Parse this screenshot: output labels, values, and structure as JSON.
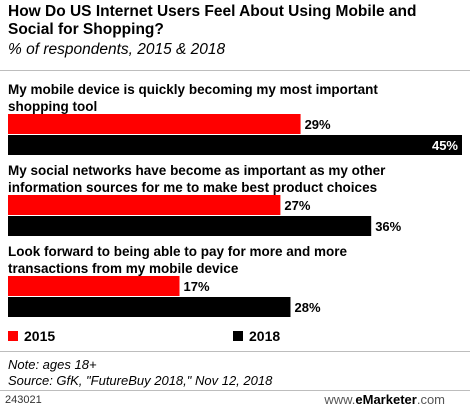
{
  "chart_data": {
    "type": "bar",
    "orientation": "horizontal",
    "title": "How Do US Internet Users Feel About Using Mobile and Social for Shopping?",
    "subtitle": "% of respondents, 2015 & 2018",
    "categories": [
      [
        "My mobile device is quickly becoming my most important",
        "shopping tool"
      ],
      [
        "My social networks have become as important as my other",
        "information sources for me to make best product choices"
      ],
      [
        "Look forward to being able to pay for more and more",
        "transactions from my mobile device"
      ]
    ],
    "series": [
      {
        "name": "2015",
        "values": [
          29,
          27,
          17
        ],
        "labels": [
          "29%",
          "27%",
          "17%"
        ],
        "color": "#ff0000"
      },
      {
        "name": "2018",
        "values": [
          45,
          36,
          28
        ],
        "labels": [
          "45%",
          "36%",
          "28%"
        ],
        "color": "#000000"
      }
    ],
    "xlim": [
      0,
      45
    ],
    "grid": false,
    "legend_position": "bottom"
  },
  "note": "Note: ages 18+",
  "source": "Source: GfK, \"FutureBuy 2018,\" Nov 12, 2018",
  "footer": {
    "id": "243021",
    "brand_prefix": "www.",
    "brand_name": "eMarketer",
    "brand_suffix": ".com"
  }
}
